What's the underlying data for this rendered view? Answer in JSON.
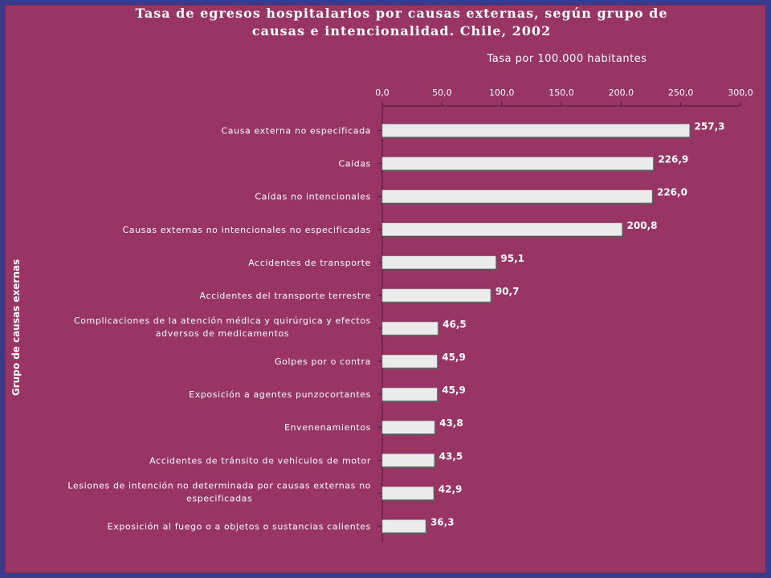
{
  "chart_data": {
    "type": "bar",
    "orientation": "horizontal",
    "title": "Tasa de egresos hospitalarios por causas externas, según grupo de\ncausas e intencionalidad. Chile, 2002",
    "xlabel": "Tasa por 100.000 habitantes",
    "ylabel": "Grupo de causas exernas",
    "xlim": [
      0,
      300
    ],
    "xticks": [
      "0,0",
      "50,0",
      "100,0",
      "150,0",
      "200,0",
      "250,0",
      "300,0"
    ],
    "xaxis_position": "top",
    "grid": false,
    "bar_color": "#ebebeb",
    "categories": [
      "Causa externa no especificada",
      "Caídas",
      "Caídas no intencionales",
      "Causas externas no intencionales no especificadas",
      "Accidentes de transporte",
      "Accidentes del transporte terrestre",
      "Complicaciones de la atención médica y quirúrgica y efectos adversos de medicamentos",
      "Golpes por o contra",
      "Exposición a agentes punzocortantes",
      "Envenenamientos",
      "Accidentes de tránsito de vehículos de motor",
      "Lesiones de intención no determinada por causas externas no especificadas",
      "Exposición al fuego o a objetos o sustancias calientes"
    ],
    "category_lines": [
      [
        "Causa externa no especificada"
      ],
      [
        "Caídas"
      ],
      [
        "Caídas no intencionales"
      ],
      [
        "Causas externas no intencionales no especificadas"
      ],
      [
        "Accidentes de transporte"
      ],
      [
        "Accidentes del transporte terrestre"
      ],
      [
        "Complicaciones de la atención médica y quirúrgica y efectos",
        "adversos de medicamentos"
      ],
      [
        "Golpes por o contra"
      ],
      [
        "Exposición a agentes punzocortantes"
      ],
      [
        "Envenenamientos"
      ],
      [
        "Accidentes de tránsito de vehículos de motor"
      ],
      [
        "Lesiones de intención no determinada por causas externas no",
        "especificadas"
      ],
      [
        "Exposición al fuego o a objetos o sustancias calientes"
      ]
    ],
    "values": [
      257.3,
      226.9,
      226.0,
      200.8,
      95.1,
      90.7,
      46.5,
      45.9,
      45.9,
      43.8,
      43.5,
      42.9,
      36.3
    ],
    "value_labels": [
      "257,3",
      "226,9",
      "226,0",
      "200,8",
      "95,1",
      "90,7",
      "46,5",
      "45,9",
      "45,9",
      "43,8",
      "43,5",
      "42,9",
      "36,3"
    ]
  }
}
